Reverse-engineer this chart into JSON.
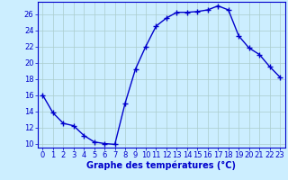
{
  "x": [
    0,
    1,
    2,
    3,
    4,
    5,
    6,
    7,
    8,
    9,
    10,
    11,
    12,
    13,
    14,
    15,
    16,
    17,
    18,
    19,
    20,
    21,
    22,
    23
  ],
  "y": [
    16,
    13.8,
    12.5,
    12.2,
    11.0,
    10.2,
    10.0,
    9.9,
    15.0,
    19.2,
    22.0,
    24.5,
    25.5,
    26.2,
    26.2,
    26.3,
    26.5,
    27.0,
    26.5,
    23.3,
    21.8,
    21.0,
    19.5,
    18.2
  ],
  "line_color": "#0000cc",
  "marker": "+",
  "marker_size": 4,
  "bg_color": "#cceeff",
  "grid_color": "#aacccc",
  "xlabel": "Graphe des températures (°C)",
  "ylim": [
    9.5,
    27.5
  ],
  "xlim": [
    -0.5,
    23.5
  ],
  "yticks": [
    10,
    12,
    14,
    16,
    18,
    20,
    22,
    24,
    26
  ],
  "xticks": [
    0,
    1,
    2,
    3,
    4,
    5,
    6,
    7,
    8,
    9,
    10,
    11,
    12,
    13,
    14,
    15,
    16,
    17,
    18,
    19,
    20,
    21,
    22,
    23
  ],
  "xlabel_fontsize": 7,
  "tick_fontsize": 6,
  "axis_color": "#0000cc",
  "spine_color": "#0000cc",
  "marker_color": "#0000cc"
}
